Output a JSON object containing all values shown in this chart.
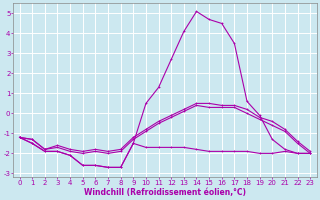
{
  "x": [
    0,
    1,
    2,
    3,
    4,
    5,
    6,
    7,
    8,
    9,
    10,
    11,
    12,
    13,
    14,
    15,
    16,
    17,
    18,
    19,
    20,
    21,
    22,
    23
  ],
  "line1": [
    -1.2,
    -1.5,
    -1.9,
    -1.9,
    -2.1,
    -2.6,
    -2.6,
    -2.7,
    -2.7,
    -1.5,
    0.5,
    1.3,
    2.7,
    4.1,
    5.1,
    4.7,
    4.5,
    3.5,
    0.6,
    -0.1,
    -1.3,
    -1.8,
    -2.0,
    -2.0
  ],
  "line2": [
    -1.2,
    -1.5,
    -1.9,
    -1.9,
    -2.1,
    -2.6,
    -2.6,
    -2.7,
    -2.7,
    -1.5,
    -1.7,
    -1.7,
    -1.7,
    -1.7,
    -1.8,
    -1.9,
    -1.9,
    -1.9,
    -1.9,
    -2.0,
    -2.0,
    -1.9,
    -2.0,
    -2.0
  ],
  "line3": [
    -1.2,
    -1.3,
    -1.8,
    -1.7,
    -1.9,
    -2.0,
    -1.9,
    -2.0,
    -1.9,
    -1.3,
    -0.9,
    -0.5,
    -0.2,
    0.1,
    0.4,
    0.3,
    0.3,
    0.3,
    0.0,
    -0.3,
    -0.6,
    -0.9,
    -1.5,
    -2.0
  ],
  "line4": [
    -1.2,
    -1.3,
    -1.8,
    -1.6,
    -1.8,
    -1.9,
    -1.8,
    -1.9,
    -1.8,
    -1.2,
    -0.8,
    -0.4,
    -0.1,
    0.2,
    0.5,
    0.5,
    0.4,
    0.4,
    0.2,
    -0.2,
    -0.4,
    -0.8,
    -1.4,
    -1.9
  ],
  "line_color": "#aa00aa",
  "background_color": "#cce8f0",
  "grid_color": "#ffffff",
  "xlabel": "Windchill (Refroidissement éolien,°C)",
  "ylim": [
    -3.2,
    5.5
  ],
  "xlim": [
    -0.5,
    23.5
  ],
  "yticks": [
    -3,
    -2,
    -1,
    0,
    1,
    2,
    3,
    4,
    5
  ],
  "xticks": [
    0,
    1,
    2,
    3,
    4,
    5,
    6,
    7,
    8,
    9,
    10,
    11,
    12,
    13,
    14,
    15,
    16,
    17,
    18,
    19,
    20,
    21,
    22,
    23
  ],
  "tick_fontsize": 5.0,
  "xlabel_fontsize": 5.5,
  "marker_size": 2.0,
  "linewidth": 0.8
}
